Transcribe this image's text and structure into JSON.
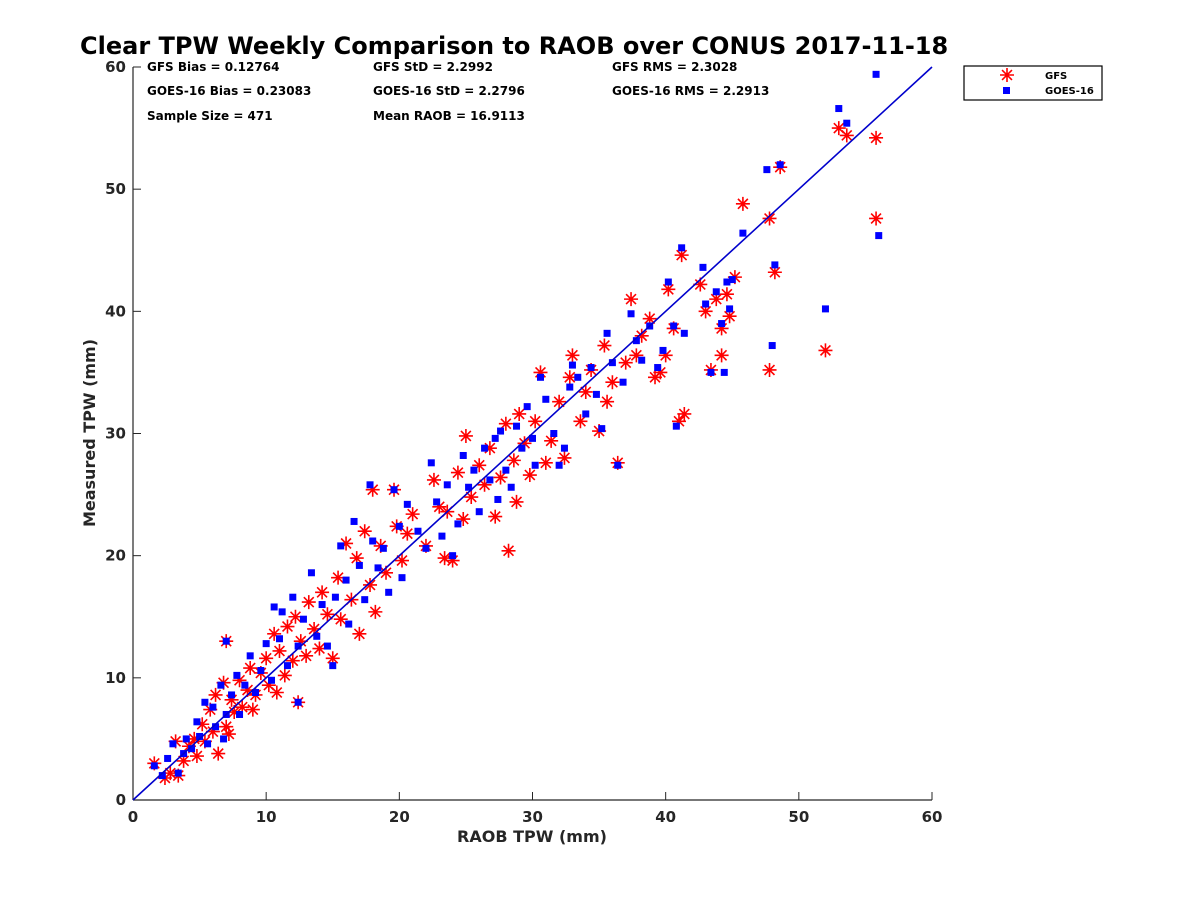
{
  "chart_data": {
    "type": "scatter",
    "title": "Clear TPW Weekly Comparison to RAOB over CONUS 2017-11-18",
    "xlabel": "RAOB TPW (mm)",
    "ylabel": "Measured TPW (mm)",
    "xlim": [
      0,
      60
    ],
    "ylim": [
      0,
      60
    ],
    "xticks": [
      "0",
      "10",
      "20",
      "30",
      "40",
      "50",
      "60"
    ],
    "yticks": [
      "0",
      "10",
      "20",
      "30",
      "40",
      "50",
      "60"
    ],
    "grid": false,
    "legend_position": "top-right",
    "reference_line": {
      "x": [
        0,
        60
      ],
      "y": [
        0,
        60
      ],
      "color": "#0000cc"
    },
    "stats": [
      "GFS Bias = 0.12764",
      "GFS StD = 2.2992",
      "GFS RMS = 2.3028",
      "GOES-16 Bias = 0.23083",
      "GOES-16 StD = 2.2796",
      "GOES-16 RMS = 2.2913",
      "Sample Size = 471",
      "Mean RAOB = 16.9113"
    ],
    "series": [
      {
        "name": "GFS",
        "marker": "asterisk",
        "color": "#ff0000",
        "points": [
          [
            1.6,
            3.0
          ],
          [
            2.4,
            1.8
          ],
          [
            2.8,
            2.2
          ],
          [
            3.2,
            4.8
          ],
          [
            3.4,
            2.0
          ],
          [
            3.8,
            3.2
          ],
          [
            4.2,
            4.4
          ],
          [
            4.6,
            5.0
          ],
          [
            4.8,
            3.6
          ],
          [
            5.2,
            6.2
          ],
          [
            5.4,
            4.8
          ],
          [
            5.8,
            7.4
          ],
          [
            6.0,
            5.6
          ],
          [
            6.2,
            8.6
          ],
          [
            6.4,
            3.8
          ],
          [
            6.8,
            9.6
          ],
          [
            7.0,
            6.0
          ],
          [
            7.2,
            5.4
          ],
          [
            7.4,
            8.2
          ],
          [
            7.6,
            7.2
          ],
          [
            7.0,
            13.0
          ],
          [
            8.0,
            9.8
          ],
          [
            8.2,
            7.6
          ],
          [
            8.6,
            9.0
          ],
          [
            8.8,
            10.8
          ],
          [
            9.0,
            7.4
          ],
          [
            9.2,
            8.6
          ],
          [
            9.6,
            10.4
          ],
          [
            10.0,
            11.6
          ],
          [
            10.2,
            9.4
          ],
          [
            10.6,
            13.6
          ],
          [
            10.8,
            8.8
          ],
          [
            11.0,
            12.2
          ],
          [
            11.4,
            10.2
          ],
          [
            11.6,
            14.2
          ],
          [
            12.0,
            11.4
          ],
          [
            12.2,
            15.0
          ],
          [
            12.4,
            8.0
          ],
          [
            12.6,
            13.0
          ],
          [
            13.0,
            11.8
          ],
          [
            13.2,
            16.2
          ],
          [
            13.6,
            14.0
          ],
          [
            14.0,
            12.4
          ],
          [
            14.2,
            17.0
          ],
          [
            14.6,
            15.2
          ],
          [
            15.0,
            11.6
          ],
          [
            15.4,
            18.2
          ],
          [
            15.6,
            14.8
          ],
          [
            16.0,
            21.0
          ],
          [
            16.4,
            16.4
          ],
          [
            16.8,
            19.8
          ],
          [
            17.0,
            13.6
          ],
          [
            17.4,
            22.0
          ],
          [
            17.8,
            17.6
          ],
          [
            18.0,
            25.4
          ],
          [
            18.2,
            15.4
          ],
          [
            18.6,
            20.8
          ],
          [
            19.0,
            18.6
          ],
          [
            19.6,
            25.4
          ],
          [
            19.8,
            22.4
          ],
          [
            20.2,
            19.6
          ],
          [
            20.6,
            21.8
          ],
          [
            21.0,
            23.4
          ],
          [
            22.0,
            20.8
          ],
          [
            22.6,
            26.2
          ],
          [
            23.0,
            24.0
          ],
          [
            23.4,
            19.8
          ],
          [
            23.6,
            23.6
          ],
          [
            24.0,
            19.6
          ],
          [
            24.4,
            26.8
          ],
          [
            24.8,
            23.0
          ],
          [
            25.0,
            29.8
          ],
          [
            25.4,
            24.8
          ],
          [
            26.0,
            27.4
          ],
          [
            26.4,
            25.8
          ],
          [
            26.8,
            28.8
          ],
          [
            27.2,
            23.2
          ],
          [
            27.6,
            26.4
          ],
          [
            28.0,
            30.8
          ],
          [
            28.2,
            20.4
          ],
          [
            28.6,
            27.8
          ],
          [
            28.8,
            24.4
          ],
          [
            29.0,
            31.6
          ],
          [
            29.4,
            29.2
          ],
          [
            29.8,
            26.6
          ],
          [
            30.2,
            31.0
          ],
          [
            30.6,
            35.0
          ],
          [
            31.0,
            27.6
          ],
          [
            31.4,
            29.4
          ],
          [
            32.0,
            32.6
          ],
          [
            32.4,
            28.0
          ],
          [
            32.8,
            34.6
          ],
          [
            33.0,
            36.4
          ],
          [
            33.6,
            31.0
          ],
          [
            34.0,
            33.4
          ],
          [
            34.4,
            35.2
          ],
          [
            35.0,
            30.2
          ],
          [
            35.4,
            37.2
          ],
          [
            35.6,
            32.6
          ],
          [
            36.0,
            34.2
          ],
          [
            36.4,
            27.6
          ],
          [
            37.0,
            35.8
          ],
          [
            37.4,
            41.0
          ],
          [
            37.8,
            36.4
          ],
          [
            38.2,
            38.0
          ],
          [
            38.8,
            39.4
          ],
          [
            39.2,
            34.6
          ],
          [
            39.6,
            35.0
          ],
          [
            40.0,
            36.4
          ],
          [
            40.2,
            41.8
          ],
          [
            40.6,
            38.6
          ],
          [
            41.0,
            31.0
          ],
          [
            41.2,
            44.6
          ],
          [
            41.4,
            31.6
          ],
          [
            42.6,
            42.2
          ],
          [
            43.0,
            40.0
          ],
          [
            43.4,
            35.2
          ],
          [
            43.8,
            41.0
          ],
          [
            44.2,
            36.4
          ],
          [
            44.2,
            38.6
          ],
          [
            44.6,
            41.4
          ],
          [
            44.8,
            39.6
          ],
          [
            45.2,
            42.8
          ],
          [
            45.8,
            48.8
          ],
          [
            47.8,
            47.6
          ],
          [
            47.8,
            35.2
          ],
          [
            48.2,
            43.2
          ],
          [
            48.6,
            51.8
          ],
          [
            52.0,
            36.8
          ],
          [
            53.0,
            55.0
          ],
          [
            53.6,
            54.4
          ],
          [
            55.8,
            54.2
          ],
          [
            55.8,
            47.6
          ]
        ]
      },
      {
        "name": "GOES-16",
        "marker": "square",
        "color": "#0000ff",
        "points": [
          [
            1.6,
            2.8
          ],
          [
            2.2,
            2.0
          ],
          [
            2.6,
            3.4
          ],
          [
            3.0,
            4.6
          ],
          [
            3.4,
            2.2
          ],
          [
            3.8,
            3.8
          ],
          [
            4.0,
            5.0
          ],
          [
            4.4,
            4.2
          ],
          [
            4.8,
            6.4
          ],
          [
            5.0,
            5.2
          ],
          [
            5.4,
            8.0
          ],
          [
            5.6,
            4.6
          ],
          [
            6.0,
            7.6
          ],
          [
            6.2,
            6.0
          ],
          [
            6.6,
            9.4
          ],
          [
            6.8,
            5.0
          ],
          [
            7.0,
            7.0
          ],
          [
            7.0,
            13.0
          ],
          [
            7.4,
            8.6
          ],
          [
            7.8,
            10.2
          ],
          [
            8.0,
            7.0
          ],
          [
            8.4,
            9.4
          ],
          [
            8.8,
            11.8
          ],
          [
            9.2,
            8.8
          ],
          [
            9.6,
            10.6
          ],
          [
            10.0,
            12.8
          ],
          [
            10.4,
            9.8
          ],
          [
            10.6,
            15.8
          ],
          [
            11.0,
            13.2
          ],
          [
            11.2,
            15.4
          ],
          [
            11.6,
            11.0
          ],
          [
            12.0,
            16.6
          ],
          [
            12.4,
            12.6
          ],
          [
            12.4,
            8.0
          ],
          [
            12.8,
            14.8
          ],
          [
            13.4,
            18.6
          ],
          [
            13.8,
            13.4
          ],
          [
            14.2,
            16.0
          ],
          [
            14.6,
            12.6
          ],
          [
            15.0,
            11.0
          ],
          [
            15.2,
            16.6
          ],
          [
            15.6,
            20.8
          ],
          [
            16.0,
            18.0
          ],
          [
            16.2,
            14.4
          ],
          [
            16.6,
            22.8
          ],
          [
            17.0,
            19.2
          ],
          [
            17.4,
            16.4
          ],
          [
            17.8,
            25.8
          ],
          [
            18.0,
            21.2
          ],
          [
            18.4,
            19.0
          ],
          [
            18.8,
            20.6
          ],
          [
            19.2,
            17.0
          ],
          [
            19.6,
            25.4
          ],
          [
            20.0,
            22.4
          ],
          [
            20.2,
            18.2
          ],
          [
            20.6,
            24.2
          ],
          [
            21.4,
            22.0
          ],
          [
            22.0,
            20.6
          ],
          [
            22.4,
            27.6
          ],
          [
            22.8,
            24.4
          ],
          [
            23.2,
            21.6
          ],
          [
            23.6,
            25.8
          ],
          [
            24.0,
            20.0
          ],
          [
            24.4,
            22.6
          ],
          [
            24.8,
            28.2
          ],
          [
            25.2,
            25.6
          ],
          [
            25.6,
            27.0
          ],
          [
            26.0,
            23.6
          ],
          [
            26.4,
            28.8
          ],
          [
            26.8,
            26.2
          ],
          [
            27.2,
            29.6
          ],
          [
            27.4,
            24.6
          ],
          [
            27.6,
            30.2
          ],
          [
            28.0,
            27.0
          ],
          [
            28.4,
            25.6
          ],
          [
            28.8,
            30.6
          ],
          [
            29.2,
            28.8
          ],
          [
            29.6,
            32.2
          ],
          [
            30.0,
            29.6
          ],
          [
            30.2,
            27.4
          ],
          [
            30.6,
            34.6
          ],
          [
            31.0,
            32.8
          ],
          [
            31.6,
            30.0
          ],
          [
            32.0,
            27.4
          ],
          [
            32.4,
            28.8
          ],
          [
            32.8,
            33.8
          ],
          [
            33.0,
            35.6
          ],
          [
            33.4,
            34.6
          ],
          [
            34.0,
            31.6
          ],
          [
            34.4,
            35.4
          ],
          [
            34.8,
            33.2
          ],
          [
            35.2,
            30.4
          ],
          [
            35.6,
            38.2
          ],
          [
            36.0,
            35.8
          ],
          [
            36.4,
            27.4
          ],
          [
            36.8,
            34.2
          ],
          [
            37.4,
            39.8
          ],
          [
            37.8,
            37.6
          ],
          [
            38.2,
            36.0
          ],
          [
            38.8,
            38.8
          ],
          [
            39.4,
            35.4
          ],
          [
            39.8,
            36.8
          ],
          [
            40.2,
            42.4
          ],
          [
            40.6,
            38.8
          ],
          [
            40.8,
            30.6
          ],
          [
            41.2,
            45.2
          ],
          [
            41.4,
            38.2
          ],
          [
            42.8,
            43.6
          ],
          [
            43.0,
            40.6
          ],
          [
            43.4,
            35.0
          ],
          [
            43.8,
            41.6
          ],
          [
            44.2,
            39.0
          ],
          [
            44.4,
            35.0
          ],
          [
            44.6,
            42.4
          ],
          [
            44.8,
            40.2
          ],
          [
            45.0,
            42.6
          ],
          [
            45.8,
            46.4
          ],
          [
            47.6,
            51.6
          ],
          [
            48.0,
            37.2
          ],
          [
            48.2,
            43.8
          ],
          [
            48.6,
            52.0
          ],
          [
            52.0,
            40.2
          ],
          [
            53.0,
            56.6
          ],
          [
            53.6,
            55.4
          ],
          [
            55.8,
            59.4
          ],
          [
            56.0,
            46.2
          ]
        ]
      }
    ]
  }
}
